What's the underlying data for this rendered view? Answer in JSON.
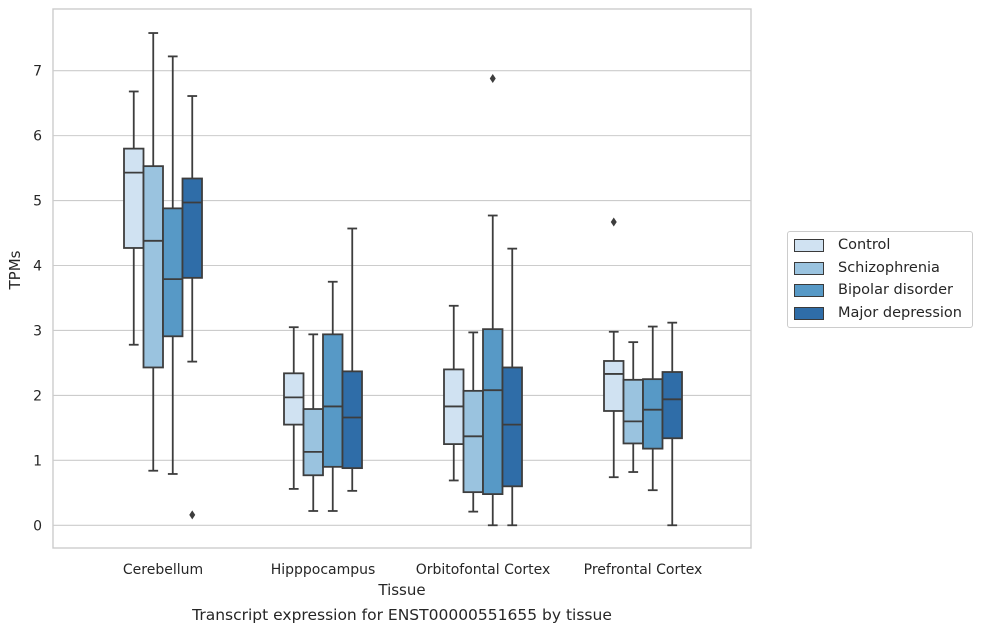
{
  "chart_data": {
    "type": "box",
    "xlabel": "Tissue",
    "ylabel": "TPMs",
    "caption": "Transcript expression for ENST00000551655 by tissue",
    "ylim": [
      -0.35,
      7.95
    ],
    "yticks": [
      0,
      1,
      2,
      3,
      4,
      5,
      6,
      7
    ],
    "grid": "horizontal",
    "legend_position": "right",
    "categories": [
      "Cerebellum",
      "Hipppocampus",
      "Orbitofontal Cortex",
      "Prefrontal Cortex"
    ],
    "series": [
      {
        "name": "Control",
        "color": "#d0e2f2",
        "boxes": [
          {
            "whislo": 2.78,
            "q1": 4.27,
            "med": 5.43,
            "q3": 5.8,
            "whishi": 6.68,
            "fliers": []
          },
          {
            "whislo": 0.56,
            "q1": 1.55,
            "med": 1.97,
            "q3": 2.34,
            "whishi": 3.05,
            "fliers": []
          },
          {
            "whislo": 0.69,
            "q1": 1.25,
            "med": 1.83,
            "q3": 2.4,
            "whishi": 3.38,
            "fliers": []
          },
          {
            "whislo": 0.74,
            "q1": 1.76,
            "med": 2.33,
            "q3": 2.53,
            "whishi": 2.98,
            "fliers": [
              4.67
            ]
          }
        ]
      },
      {
        "name": "Schizophrenia",
        "color": "#9ac3df",
        "boxes": [
          {
            "whislo": 0.84,
            "q1": 2.43,
            "med": 4.38,
            "q3": 5.53,
            "whishi": 7.58,
            "fliers": []
          },
          {
            "whislo": 0.22,
            "q1": 0.77,
            "med": 1.13,
            "q3": 1.79,
            "whishi": 2.94,
            "fliers": []
          },
          {
            "whislo": 0.21,
            "q1": 0.51,
            "med": 1.37,
            "q3": 2.07,
            "whishi": 2.97,
            "fliers": []
          },
          {
            "whislo": 0.82,
            "q1": 1.26,
            "med": 1.6,
            "q3": 2.24,
            "whishi": 2.82,
            "fliers": []
          }
        ]
      },
      {
        "name": "Bipolar disorder",
        "color": "#5799c6",
        "boxes": [
          {
            "whislo": 0.79,
            "q1": 2.91,
            "med": 3.79,
            "q3": 4.88,
            "whishi": 7.22,
            "fliers": []
          },
          {
            "whislo": 0.22,
            "q1": 0.9,
            "med": 1.83,
            "q3": 2.94,
            "whishi": 3.75,
            "fliers": []
          },
          {
            "whislo": 0.0,
            "q1": 0.48,
            "med": 2.08,
            "q3": 3.02,
            "whishi": 4.77,
            "fliers": [
              6.88
            ]
          },
          {
            "whislo": 0.54,
            "q1": 1.18,
            "med": 1.78,
            "q3": 2.25,
            "whishi": 3.06,
            "fliers": []
          }
        ]
      },
      {
        "name": "Major depression",
        "color": "#2f6da8",
        "boxes": [
          {
            "whislo": 2.52,
            "q1": 3.81,
            "med": 4.97,
            "q3": 5.34,
            "whishi": 6.61,
            "fliers": [
              0.16
            ]
          },
          {
            "whislo": 0.53,
            "q1": 0.88,
            "med": 1.66,
            "q3": 2.37,
            "whishi": 4.57,
            "fliers": []
          },
          {
            "whislo": 0.0,
            "q1": 0.6,
            "med": 1.55,
            "q3": 2.43,
            "whishi": 4.26,
            "fliers": []
          },
          {
            "whislo": 0.0,
            "q1": 1.34,
            "med": 1.94,
            "q3": 2.36,
            "whishi": 3.12,
            "fliers": []
          }
        ]
      }
    ]
  }
}
